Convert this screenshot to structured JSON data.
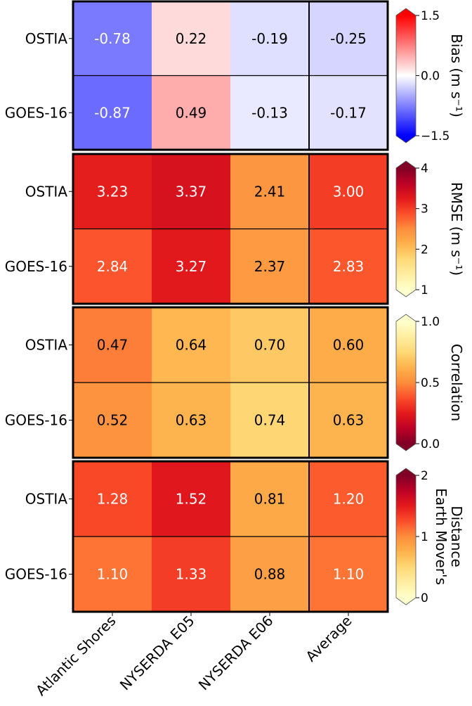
{
  "chart_data": {
    "type": "heatmap",
    "x_categories": [
      "Atlantic Shores",
      "NYSERDA E05",
      "NYSERDA E06",
      "Average"
    ],
    "y_categories": [
      "OSTIA",
      "GOES-16"
    ],
    "panels": [
      {
        "name": "bias",
        "colorbar_label": "Bias (m s⁻¹)",
        "colormap": "bwr",
        "vmin": -1.5,
        "vmax": 1.5,
        "colorbar_ticks": [
          "−1.5",
          "0.0",
          "1.5"
        ],
        "colorbar_tick_values": [
          -1.5,
          0.0,
          1.5
        ],
        "extend": "both",
        "values": [
          [
            -0.78,
            0.22,
            -0.19,
            -0.25
          ],
          [
            -0.87,
            0.49,
            -0.13,
            -0.17
          ]
        ],
        "labels": [
          [
            "-0.78",
            "0.22",
            "-0.19",
            "-0.25"
          ],
          [
            "-0.87",
            "0.49",
            "-0.13",
            "-0.17"
          ]
        ]
      },
      {
        "name": "rmse",
        "colorbar_label": "RMSE (m s⁻¹)",
        "colormap": "YlOrRd",
        "vmin": 1,
        "vmax": 4,
        "colorbar_ticks": [
          "1",
          "2",
          "3",
          "4"
        ],
        "colorbar_tick_values": [
          1,
          2,
          3,
          4
        ],
        "extend": "both",
        "values": [
          [
            3.23,
            3.37,
            2.41,
            3.0
          ],
          [
            2.84,
            3.27,
            2.37,
            2.83
          ]
        ],
        "labels": [
          [
            "3.23",
            "3.37",
            "2.41",
            "3.00"
          ],
          [
            "2.84",
            "3.27",
            "2.37",
            "2.83"
          ]
        ]
      },
      {
        "name": "correlation",
        "colorbar_label": "Correlation",
        "colormap": "YlOrRd_r",
        "vmin": 0.0,
        "vmax": 1.0,
        "colorbar_ticks": [
          "0.0",
          "0.5",
          "1.0"
        ],
        "colorbar_tick_values": [
          0.0,
          0.5,
          1.0
        ],
        "extend": "both",
        "values": [
          [
            0.47,
            0.64,
            0.7,
            0.6
          ],
          [
            0.52,
            0.63,
            0.74,
            0.63
          ]
        ],
        "labels": [
          [
            "0.47",
            "0.64",
            "0.70",
            "0.60"
          ],
          [
            "0.52",
            "0.63",
            "0.74",
            "0.63"
          ]
        ]
      },
      {
        "name": "emd",
        "colorbar_label": [
          "Earth Mover's",
          "Distance"
        ],
        "colormap": "YlOrRd",
        "vmin": 0,
        "vmax": 2,
        "colorbar_ticks": [
          "0",
          "1",
          "2"
        ],
        "colorbar_tick_values": [
          0,
          1,
          2
        ],
        "extend": "both",
        "values": [
          [
            1.28,
            1.52,
            0.81,
            1.2
          ],
          [
            1.1,
            1.33,
            0.88,
            1.1
          ]
        ],
        "labels": [
          [
            "1.28",
            "1.52",
            "0.81",
            "1.20"
          ],
          [
            "1.10",
            "1.33",
            "0.88",
            "1.10"
          ]
        ]
      }
    ]
  }
}
